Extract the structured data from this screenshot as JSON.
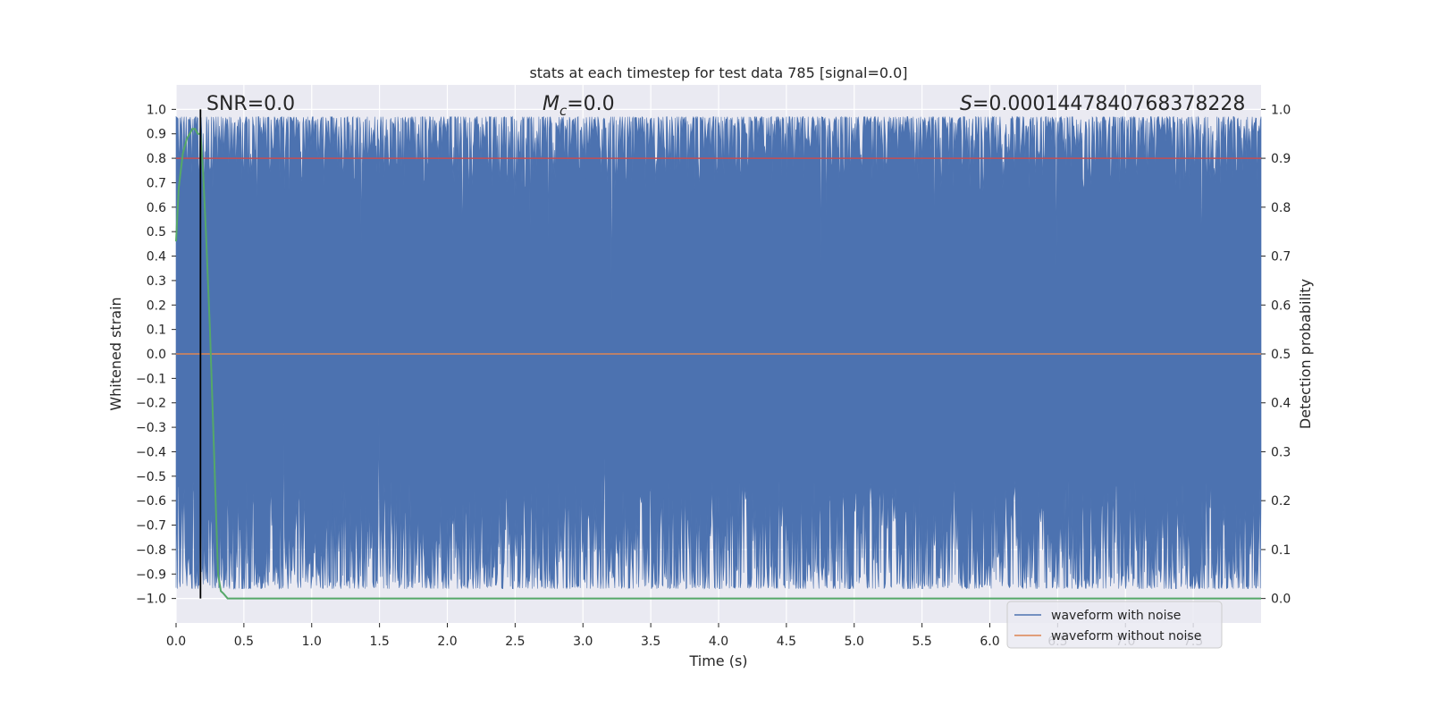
{
  "chart_data": {
    "type": "line",
    "title": "stats at each timestep for test data 785 [signal=0.0]",
    "xlabel": "Time (s)",
    "ylabel": "Whitened strain",
    "ylabel_right": "Detection probability",
    "xlim": [
      0.0,
      8.0
    ],
    "ylim": [
      -1.1,
      1.1
    ],
    "ylim_right": [
      -0.05,
      1.05
    ],
    "x_ticks": [
      0.0,
      0.5,
      1.0,
      1.5,
      2.0,
      2.5,
      3.0,
      3.5,
      4.0,
      4.5,
      5.0,
      5.5,
      6.0,
      6.5,
      7.0,
      7.5
    ],
    "y_ticks": [
      -1.0,
      -0.9,
      -0.8,
      -0.7,
      -0.6,
      -0.5,
      -0.4,
      -0.3,
      -0.2,
      -0.1,
      0.0,
      0.1,
      0.2,
      0.3,
      0.4,
      0.5,
      0.6,
      0.7,
      0.8,
      0.9,
      1.0
    ],
    "y_ticks_right": [
      0.0,
      0.1,
      0.2,
      0.3,
      0.4,
      0.5,
      0.6,
      0.7,
      0.8,
      0.9,
      1.0
    ],
    "grid": true,
    "legend_position": "lower-right",
    "colors": {
      "background": "#eaeaf2",
      "grid": "#ffffff",
      "noise": "#4c72b0",
      "clean": "#dd8452",
      "prob": "#55a868",
      "threshold": "#c44e52",
      "marker": "#000000"
    },
    "series": [
      {
        "name": "waveform with noise",
        "description_range": [
          -1.0,
          1.0
        ],
        "envelope_high": 0.97,
        "envelope_low": -0.96
      },
      {
        "name": "waveform without noise",
        "x": [
          0.0,
          8.0
        ],
        "y": [
          0.0,
          0.0
        ]
      }
    ],
    "probability": {
      "x": [
        0.0,
        0.02,
        0.05,
        0.08,
        0.1,
        0.12,
        0.14,
        0.16,
        0.18,
        0.2,
        0.22,
        0.25,
        0.28,
        0.31,
        0.33,
        0.35,
        0.38,
        8.0
      ],
      "y": [
        0.73,
        0.84,
        0.91,
        0.94,
        0.95,
        0.96,
        0.96,
        0.95,
        0.95,
        0.87,
        0.75,
        0.55,
        0.3,
        0.05,
        0.015,
        0.01,
        0.0,
        0.0
      ]
    },
    "threshold_right": 0.9,
    "vertical_marker_x": 0.18,
    "annotations": {
      "snr": "SNR=0.0",
      "mc_symbol": "M",
      "mc_sub": "c",
      "mc_value": "=0.0",
      "s_symbol": "S",
      "s_value": "=0.0001447840768378228"
    }
  }
}
